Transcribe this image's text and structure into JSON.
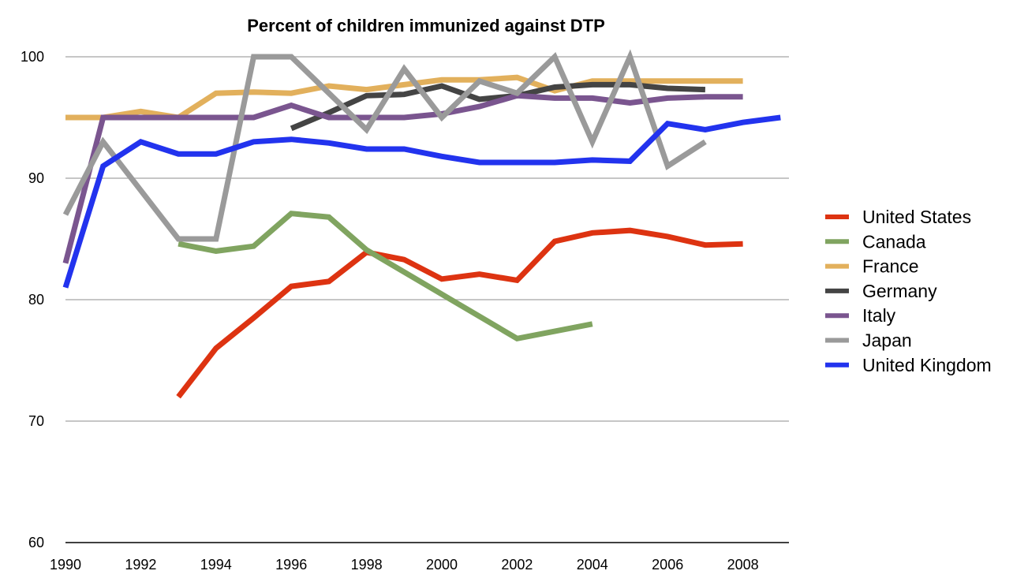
{
  "chart_data": {
    "type": "line",
    "title": "Percent of children immunized against DTP",
    "xlabel": "",
    "ylabel": "",
    "xlim": [
      1990,
      2009
    ],
    "ylim": [
      60,
      100
    ],
    "x_ticks": [
      1990,
      1992,
      1994,
      1996,
      1998,
      2000,
      2002,
      2004,
      2006,
      2008
    ],
    "y_ticks": [
      60,
      70,
      80,
      90,
      100
    ],
    "grid": true,
    "legend_position": "right",
    "series": [
      {
        "name": "United States",
        "color": "#dd3311",
        "x": [
          1993,
          1994,
          1995,
          1996,
          1997,
          1998,
          1999,
          2000,
          2001,
          2002,
          2003,
          2004,
          2005,
          2006,
          2007,
          2008
        ],
        "values": [
          72,
          76,
          78.5,
          81.1,
          81.5,
          83.9,
          83.3,
          81.7,
          82.1,
          81.6,
          84.8,
          85.5,
          85.7,
          85.2,
          84.5,
          84.6
        ]
      },
      {
        "name": "Canada",
        "color": "#80a460",
        "x": [
          1993,
          1994,
          1995,
          1996,
          1997,
          1998,
          2002,
          2004
        ],
        "values": [
          84.6,
          84,
          84.4,
          87.1,
          86.8,
          84.1,
          76.8,
          78
        ]
      },
      {
        "name": "France",
        "color": "#e2b05c",
        "x": [
          1990,
          1991,
          1992,
          1993,
          1994,
          1995,
          1996,
          1997,
          1998,
          1999,
          2000,
          2001,
          2002,
          2003,
          2004,
          2005,
          2006,
          2007,
          2008
        ],
        "values": [
          95,
          95,
          95.5,
          95,
          97,
          97.1,
          97,
          97.6,
          97.3,
          97.7,
          98.1,
          98.1,
          98.3,
          97.2,
          98,
          98,
          98,
          98,
          98
        ]
      },
      {
        "name": "Germany",
        "color": "#444444",
        "x": [
          1996,
          1997,
          1998,
          1999,
          2000,
          2001,
          2002,
          2003,
          2004,
          2005,
          2006,
          2007
        ],
        "values": [
          94.1,
          95.4,
          96.8,
          96.9,
          97.6,
          96.5,
          96.8,
          97.5,
          97.7,
          97.7,
          97.4,
          97.3
        ]
      },
      {
        "name": "Italy",
        "color": "#7a558f",
        "x": [
          1990,
          1991,
          1992,
          1993,
          1994,
          1995,
          1996,
          1997,
          1998,
          1999,
          2000,
          2001,
          2002,
          2003,
          2004,
          2005,
          2006,
          2007,
          2008
        ],
        "values": [
          83,
          95,
          95,
          95,
          95,
          95,
          96,
          95,
          95,
          95,
          95.3,
          95.9,
          96.8,
          96.6,
          96.6,
          96.2,
          96.6,
          96.7,
          96.7
        ]
      },
      {
        "name": "Japan",
        "color": "#9a9a9a",
        "x": [
          1990,
          1991,
          1992,
          1993,
          1994,
          1995,
          1996,
          1997,
          1998,
          1999,
          2000,
          2001,
          2002,
          2003,
          2004,
          2005,
          2006,
          2007
        ],
        "values": [
          87,
          93,
          89,
          85,
          85,
          100,
          100,
          97,
          94,
          99,
          95,
          98,
          97,
          100,
          93,
          100,
          91,
          93
        ]
      },
      {
        "name": "United Kingdom",
        "color": "#2233ee",
        "x": [
          1990,
          1991,
          1992,
          1993,
          1994,
          1995,
          1996,
          1997,
          1998,
          1999,
          2000,
          2001,
          2002,
          2003,
          2004,
          2005,
          2006,
          2007,
          2008,
          2009
        ],
        "values": [
          81,
          91,
          93,
          92,
          92,
          93,
          93.2,
          92.9,
          92.4,
          92.4,
          91.8,
          91.3,
          91.3,
          91.3,
          91.5,
          91.4,
          94.5,
          94,
          94.6,
          95
        ]
      }
    ]
  }
}
